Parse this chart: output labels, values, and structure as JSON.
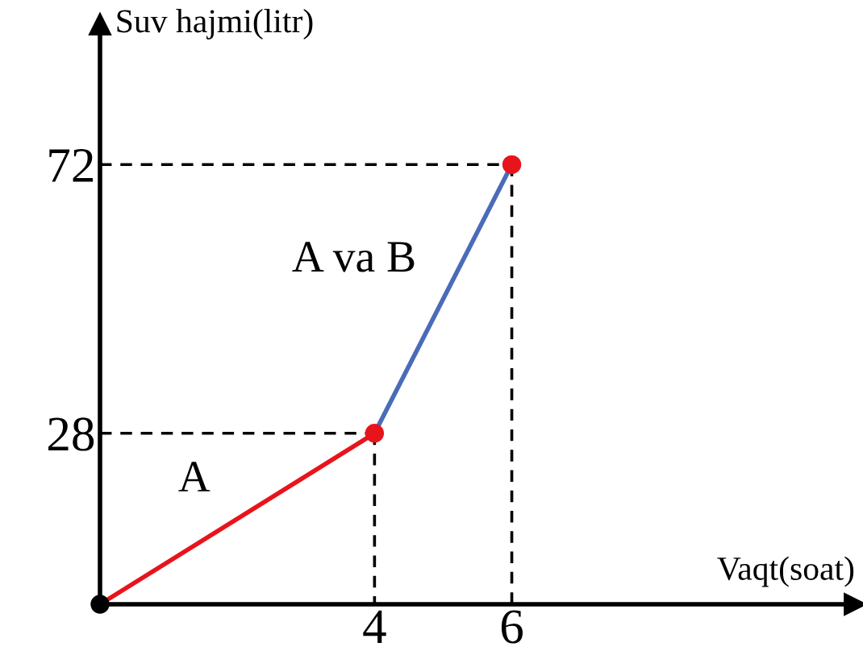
{
  "chart_data": {
    "type": "line",
    "xlabel": "Vaqt(soat)",
    "ylabel": "Suv hajmi(litr)",
    "xlim": [
      0,
      11
    ],
    "ylim": [
      0,
      95
    ],
    "xticks": [
      4,
      6
    ],
    "yticks": [
      28,
      72
    ],
    "grid": false,
    "legend": false,
    "series": [
      {
        "name": "A",
        "color": "#e8141c",
        "x": [
          0,
          4
        ],
        "values": [
          0,
          28
        ],
        "marker": "none",
        "line_style": "solid"
      },
      {
        "name": "A va B",
        "color": "#4a6cb8",
        "x": [
          4,
          6
        ],
        "values": [
          28,
          72
        ],
        "marker": "none",
        "line_style": "solid"
      },
      {
        "type": "line",
        "color": "#000000",
        "x": [
          0,
          4
        ],
        "values": [
          28,
          28
        ],
        "marker": "none",
        "line_style": "dashed"
      },
      {
        "type": "line",
        "color": "#000000",
        "x": [
          4,
          4
        ],
        "values": [
          28,
          0
        ],
        "marker": "none",
        "line_style": "dashed"
      },
      {
        "type": "line",
        "color": "#000000",
        "x": [
          0,
          6
        ],
        "values": [
          72,
          72
        ],
        "marker": "none",
        "line_style": "dashed"
      },
      {
        "type": "line",
        "color": "#000000",
        "x": [
          6,
          6
        ],
        "values": [
          72,
          0
        ],
        "marker": "none",
        "line_style": "dashed"
      },
      {
        "type": "scatter",
        "color": "#e8141c",
        "x": [
          4,
          6
        ],
        "values": [
          28,
          72
        ],
        "marker": "circle"
      },
      {
        "type": "scatter",
        "color": "#000000",
        "x": [
          0
        ],
        "values": [
          0
        ],
        "marker": "circle"
      }
    ]
  }
}
